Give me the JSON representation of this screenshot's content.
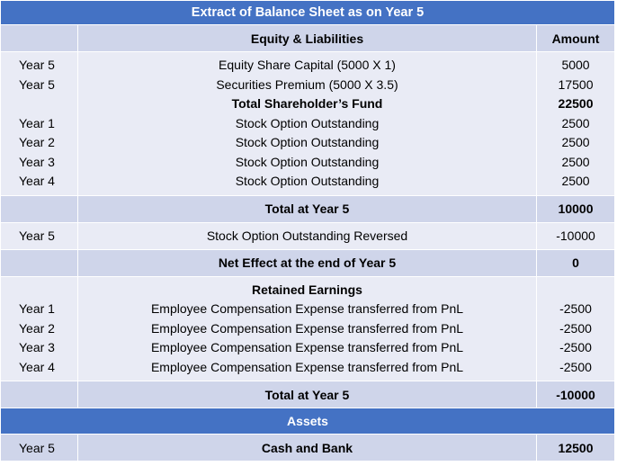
{
  "title": "Extract of Balance Sheet as on Year 5",
  "header": {
    "particulars": "Equity & Liabilities",
    "amount": "Amount"
  },
  "block1": {
    "rows": [
      {
        "year": "Year 5",
        "label": "Equity Share Capital (5000 X 1)",
        "amount": "5000"
      },
      {
        "year": "Year 5",
        "label": "Securities Premium (5000 X 3.5)",
        "amount": "17500"
      },
      {
        "year": "",
        "label": "Total Shareholder’s Fund",
        "amount": "22500",
        "bold": true
      },
      {
        "year": "Year 1",
        "label": "Stock Option Outstanding",
        "amount": "2500"
      },
      {
        "year": "Year 2",
        "label": "Stock Option Outstanding",
        "amount": "2500"
      },
      {
        "year": "Year 3",
        "label": "Stock Option Outstanding",
        "amount": "2500"
      },
      {
        "year": "Year 4",
        "label": "Stock Option Outstanding",
        "amount": "2500"
      }
    ]
  },
  "total1": {
    "label": "Total at Year 5",
    "amount": "10000"
  },
  "reversal": {
    "year": "Year 5",
    "label": "Stock Option Outstanding Reversed",
    "amount": "-10000"
  },
  "net_effect": {
    "label": "Net Effect at the end of Year 5",
    "amount": "0"
  },
  "retained": {
    "heading": "Retained Earnings",
    "rows": [
      {
        "year": "Year 1",
        "label": "Employee Compensation Expense transferred from PnL",
        "amount": "-2500"
      },
      {
        "year": "Year 2",
        "label": "Employee Compensation Expense transferred from PnL",
        "amount": "-2500"
      },
      {
        "year": "Year 3",
        "label": "Employee Compensation Expense transferred from PnL",
        "amount": "-2500"
      },
      {
        "year": "Year 4",
        "label": "Employee Compensation Expense transferred from PnL",
        "amount": "-2500"
      }
    ]
  },
  "total2": {
    "label": "Total at Year 5",
    "amount": "-10000"
  },
  "assets_heading": "Assets",
  "cash": {
    "year": "Year 5",
    "label": "Cash and Bank",
    "amount": "12500"
  }
}
